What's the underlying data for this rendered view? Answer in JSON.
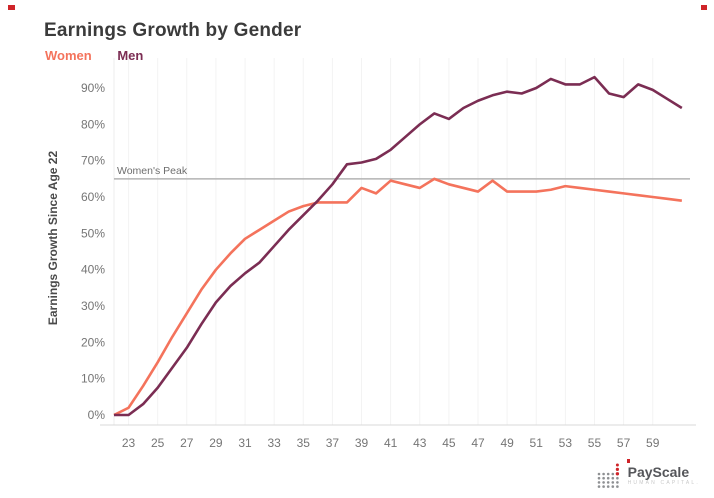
{
  "header": {
    "title": "Earnings Growth by Gender"
  },
  "legend": [
    {
      "label": "Women",
      "color": "#f4735c"
    },
    {
      "label": "Men",
      "color": "#7b2d53"
    }
  ],
  "chart_data": {
    "type": "line",
    "title": "Earnings Growth by Gender",
    "xlabel": "",
    "ylabel": "Earnings Growth Since Age 22",
    "x": [
      22,
      23,
      24,
      25,
      26,
      27,
      28,
      29,
      30,
      31,
      32,
      33,
      34,
      35,
      36,
      37,
      38,
      39,
      40,
      41,
      42,
      43,
      44,
      45,
      46,
      47,
      48,
      49,
      50,
      51,
      52,
      53,
      54,
      55,
      56,
      57,
      58,
      59,
      60,
      61
    ],
    "series": [
      {
        "name": "Women",
        "color": "#f4735c",
        "values": [
          0,
          2,
          8,
          14.5,
          21.5,
          28,
          34.5,
          40,
          44.5,
          48.5,
          51,
          53.5,
          56,
          57.5,
          58.5,
          58.5,
          58.5,
          62.5,
          61,
          64.5,
          63.5,
          62.5,
          65,
          63.5,
          62.5,
          61.5,
          64.5,
          61.5,
          61.5,
          61.5,
          62,
          63,
          62.5,
          62,
          61.5,
          61,
          60.5,
          60,
          59.5,
          59
        ]
      },
      {
        "name": "Men",
        "color": "#7b2d53",
        "values": [
          0,
          0,
          3,
          7.5,
          13,
          18.5,
          25,
          31,
          35.5,
          39,
          42,
          46.5,
          51,
          55,
          59,
          63.5,
          69,
          69.5,
          70.5,
          73,
          76.5,
          80,
          83,
          81.5,
          84.5,
          86.5,
          88,
          89,
          88.5,
          90,
          92.5,
          91,
          91,
          93,
          88.5,
          87.5,
          91,
          89.5,
          87,
          84.5
        ]
      }
    ],
    "x_ticks": [
      23,
      25,
      27,
      29,
      31,
      33,
      35,
      37,
      39,
      41,
      43,
      45,
      47,
      49,
      51,
      53,
      55,
      57,
      59
    ],
    "y_ticks": [
      0,
      10,
      20,
      30,
      40,
      50,
      60,
      70,
      80,
      90
    ],
    "y_tick_suffix": "%",
    "ylim": [
      0,
      95
    ],
    "xlim": [
      22,
      61.5
    ],
    "grid": "vertical-faint",
    "legend_position": "top-left",
    "annotation": {
      "label": "Women's Peak",
      "value": 65
    }
  },
  "footer": {
    "brand": "PayScale",
    "tagline": "HUMAN CAPITAL."
  },
  "colors": {
    "title_text": "#3b3b3b",
    "tick_text": "#757575",
    "annotation_line": "#b3b3b3",
    "annotation_text": "#6e6e6e",
    "axis_line": "#d9d9d9",
    "gridline": "#f3f3f3",
    "accent_red": "#cf2429"
  }
}
